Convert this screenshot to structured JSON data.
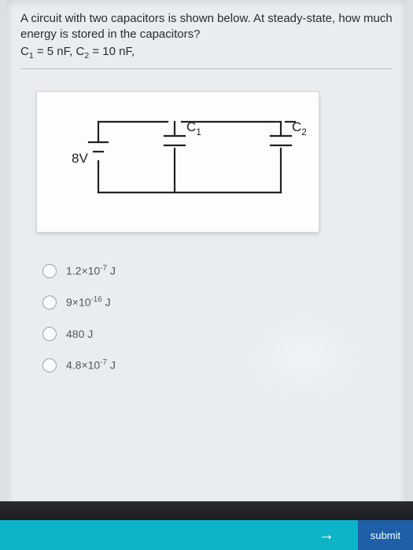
{
  "question": {
    "text": "A circuit with two capacitors is shown below. At steady-state, how much energy is stored in the capacitors?",
    "params_html": "C<sub>1</sub> = 5 nF, C<sub>2</sub> = 10 nF,"
  },
  "figure": {
    "voltage_label": "8V",
    "cap1_label": "C",
    "cap1_sub": "1",
    "cap2_label": "C",
    "cap2_sub": "2",
    "stroke": "#222222",
    "stroke_width": 2.2
  },
  "options": [
    {
      "html": "1.2×10<sup>-7</sup> J"
    },
    {
      "html": "9×10<sup>-16</sup> J"
    },
    {
      "html": "480 J"
    },
    {
      "html": "4.8×10<sup>-7</sup> J"
    }
  ],
  "footer": {
    "arrow": "→",
    "submit": "submit"
  },
  "colors": {
    "page_bg": "#e9edf0",
    "card_bg": "#fdfdfd",
    "teal": "#0db3c7",
    "blue": "#1e5fa8"
  }
}
